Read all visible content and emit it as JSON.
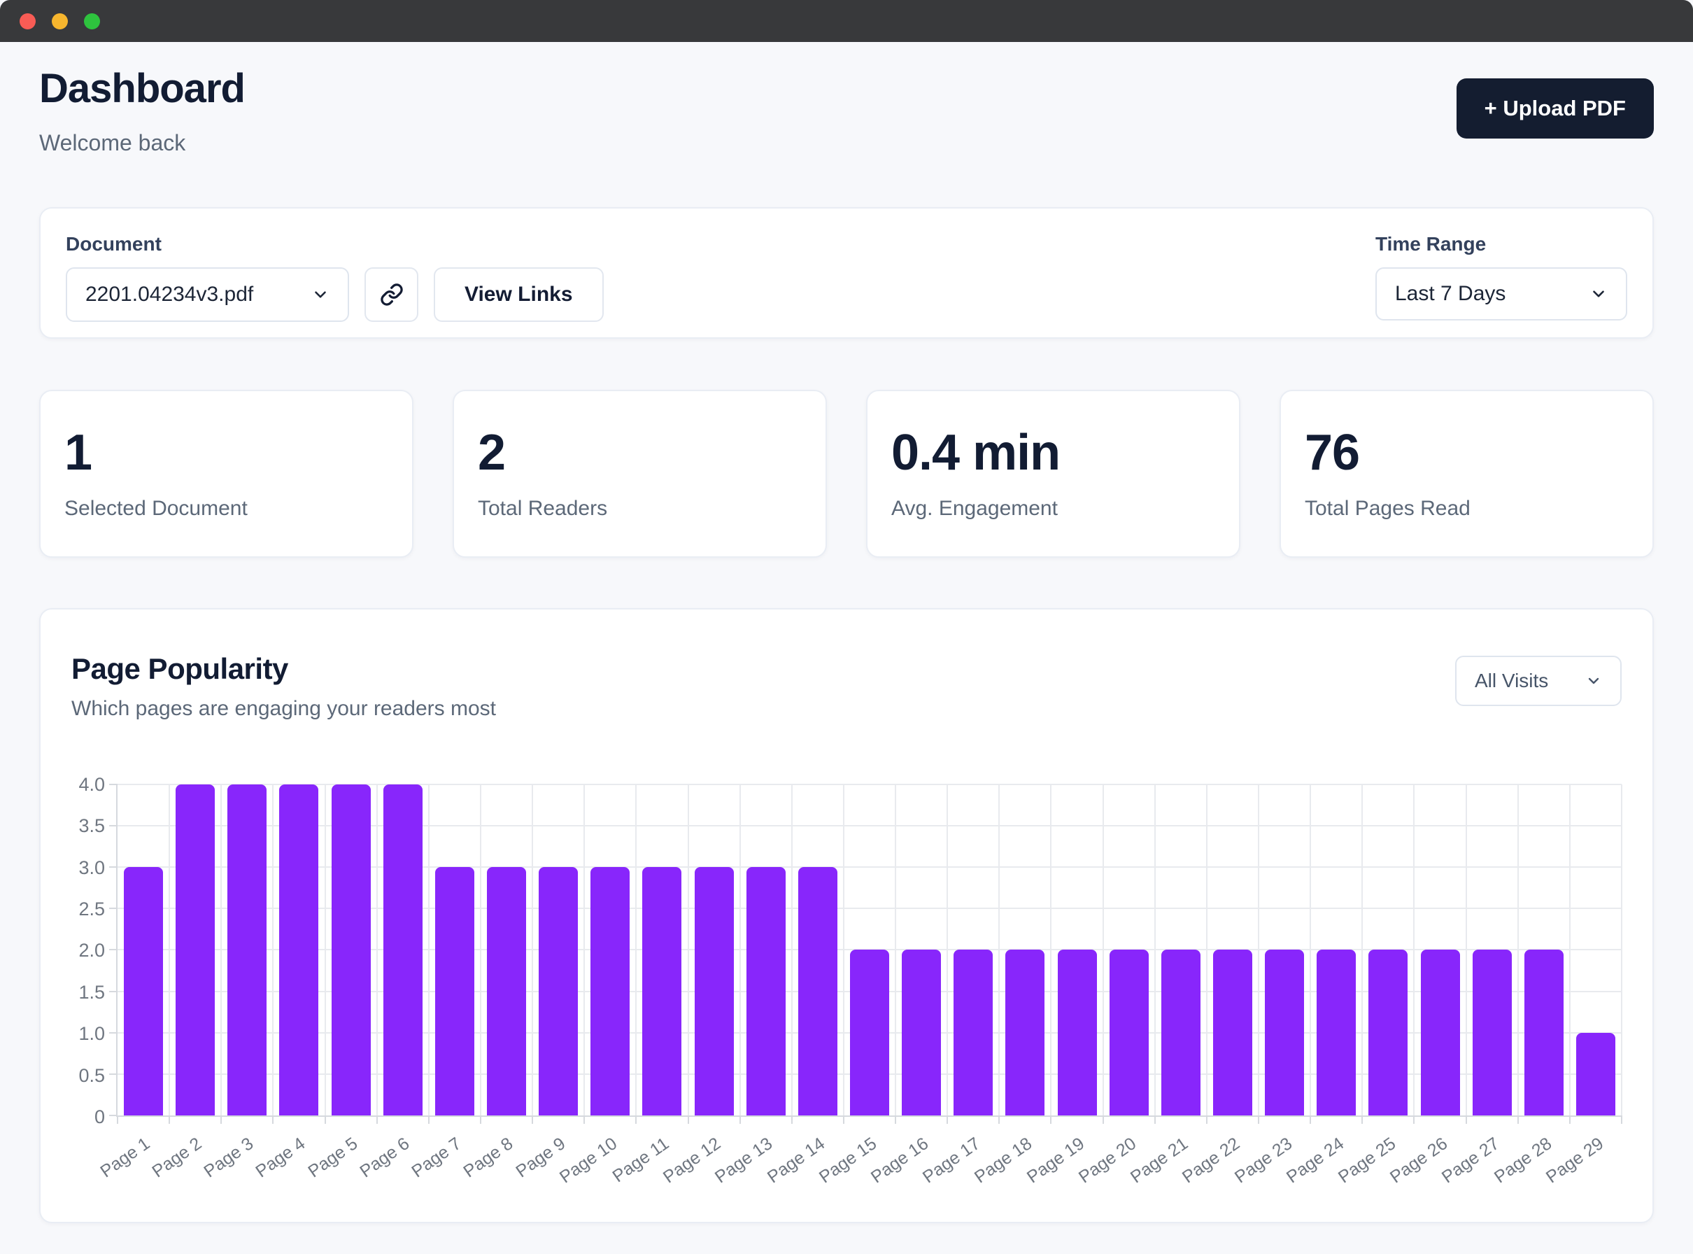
{
  "header": {
    "title": "Dashboard",
    "subtitle": "Welcome back",
    "upload_button": "+ Upload PDF"
  },
  "filters": {
    "document_label": "Document",
    "document_selected": "2201.04234v3.pdf",
    "view_links_button": "View Links",
    "time_range_label": "Time Range",
    "time_range_selected": "Last 7 Days"
  },
  "stats": [
    {
      "value": "1",
      "label": "Selected Document"
    },
    {
      "value": "2",
      "label": "Total Readers"
    },
    {
      "value": "0.4 min",
      "label": "Avg. Engagement"
    },
    {
      "value": "76",
      "label": "Total Pages Read"
    }
  ],
  "chart_section": {
    "title": "Page Popularity",
    "subtitle": "Which pages are engaging your readers most",
    "filter_selected": "All Visits"
  },
  "chart_data": {
    "type": "bar",
    "title": "Page Popularity",
    "categories": [
      "Page 1",
      "Page 2",
      "Page 3",
      "Page 4",
      "Page 5",
      "Page 6",
      "Page 7",
      "Page 8",
      "Page 9",
      "Page 10",
      "Page 11",
      "Page 12",
      "Page 13",
      "Page 14",
      "Page 15",
      "Page 16",
      "Page 17",
      "Page 18",
      "Page 19",
      "Page 20",
      "Page 21",
      "Page 22",
      "Page 23",
      "Page 24",
      "Page 25",
      "Page 26",
      "Page 27",
      "Page 28",
      "Page 29"
    ],
    "values": [
      3,
      4,
      4,
      4,
      4,
      4,
      3,
      3,
      3,
      3,
      3,
      3,
      3,
      3,
      2,
      2,
      2,
      2,
      2,
      2,
      2,
      2,
      2,
      2,
      2,
      2,
      2,
      2,
      1
    ],
    "xlabel": "",
    "ylabel": "",
    "ylim": [
      0,
      4
    ],
    "ytick_step": 0.5,
    "grid": true,
    "legend": false,
    "bar_color": "#8826fb",
    "xlabel_angle_deg": -35
  },
  "colors": {
    "accent": "#8826fb",
    "dark_button": "#141d30",
    "traffic_red": "#f85c55",
    "traffic_yellow": "#f7b62e",
    "traffic_green": "#2ec33e"
  }
}
